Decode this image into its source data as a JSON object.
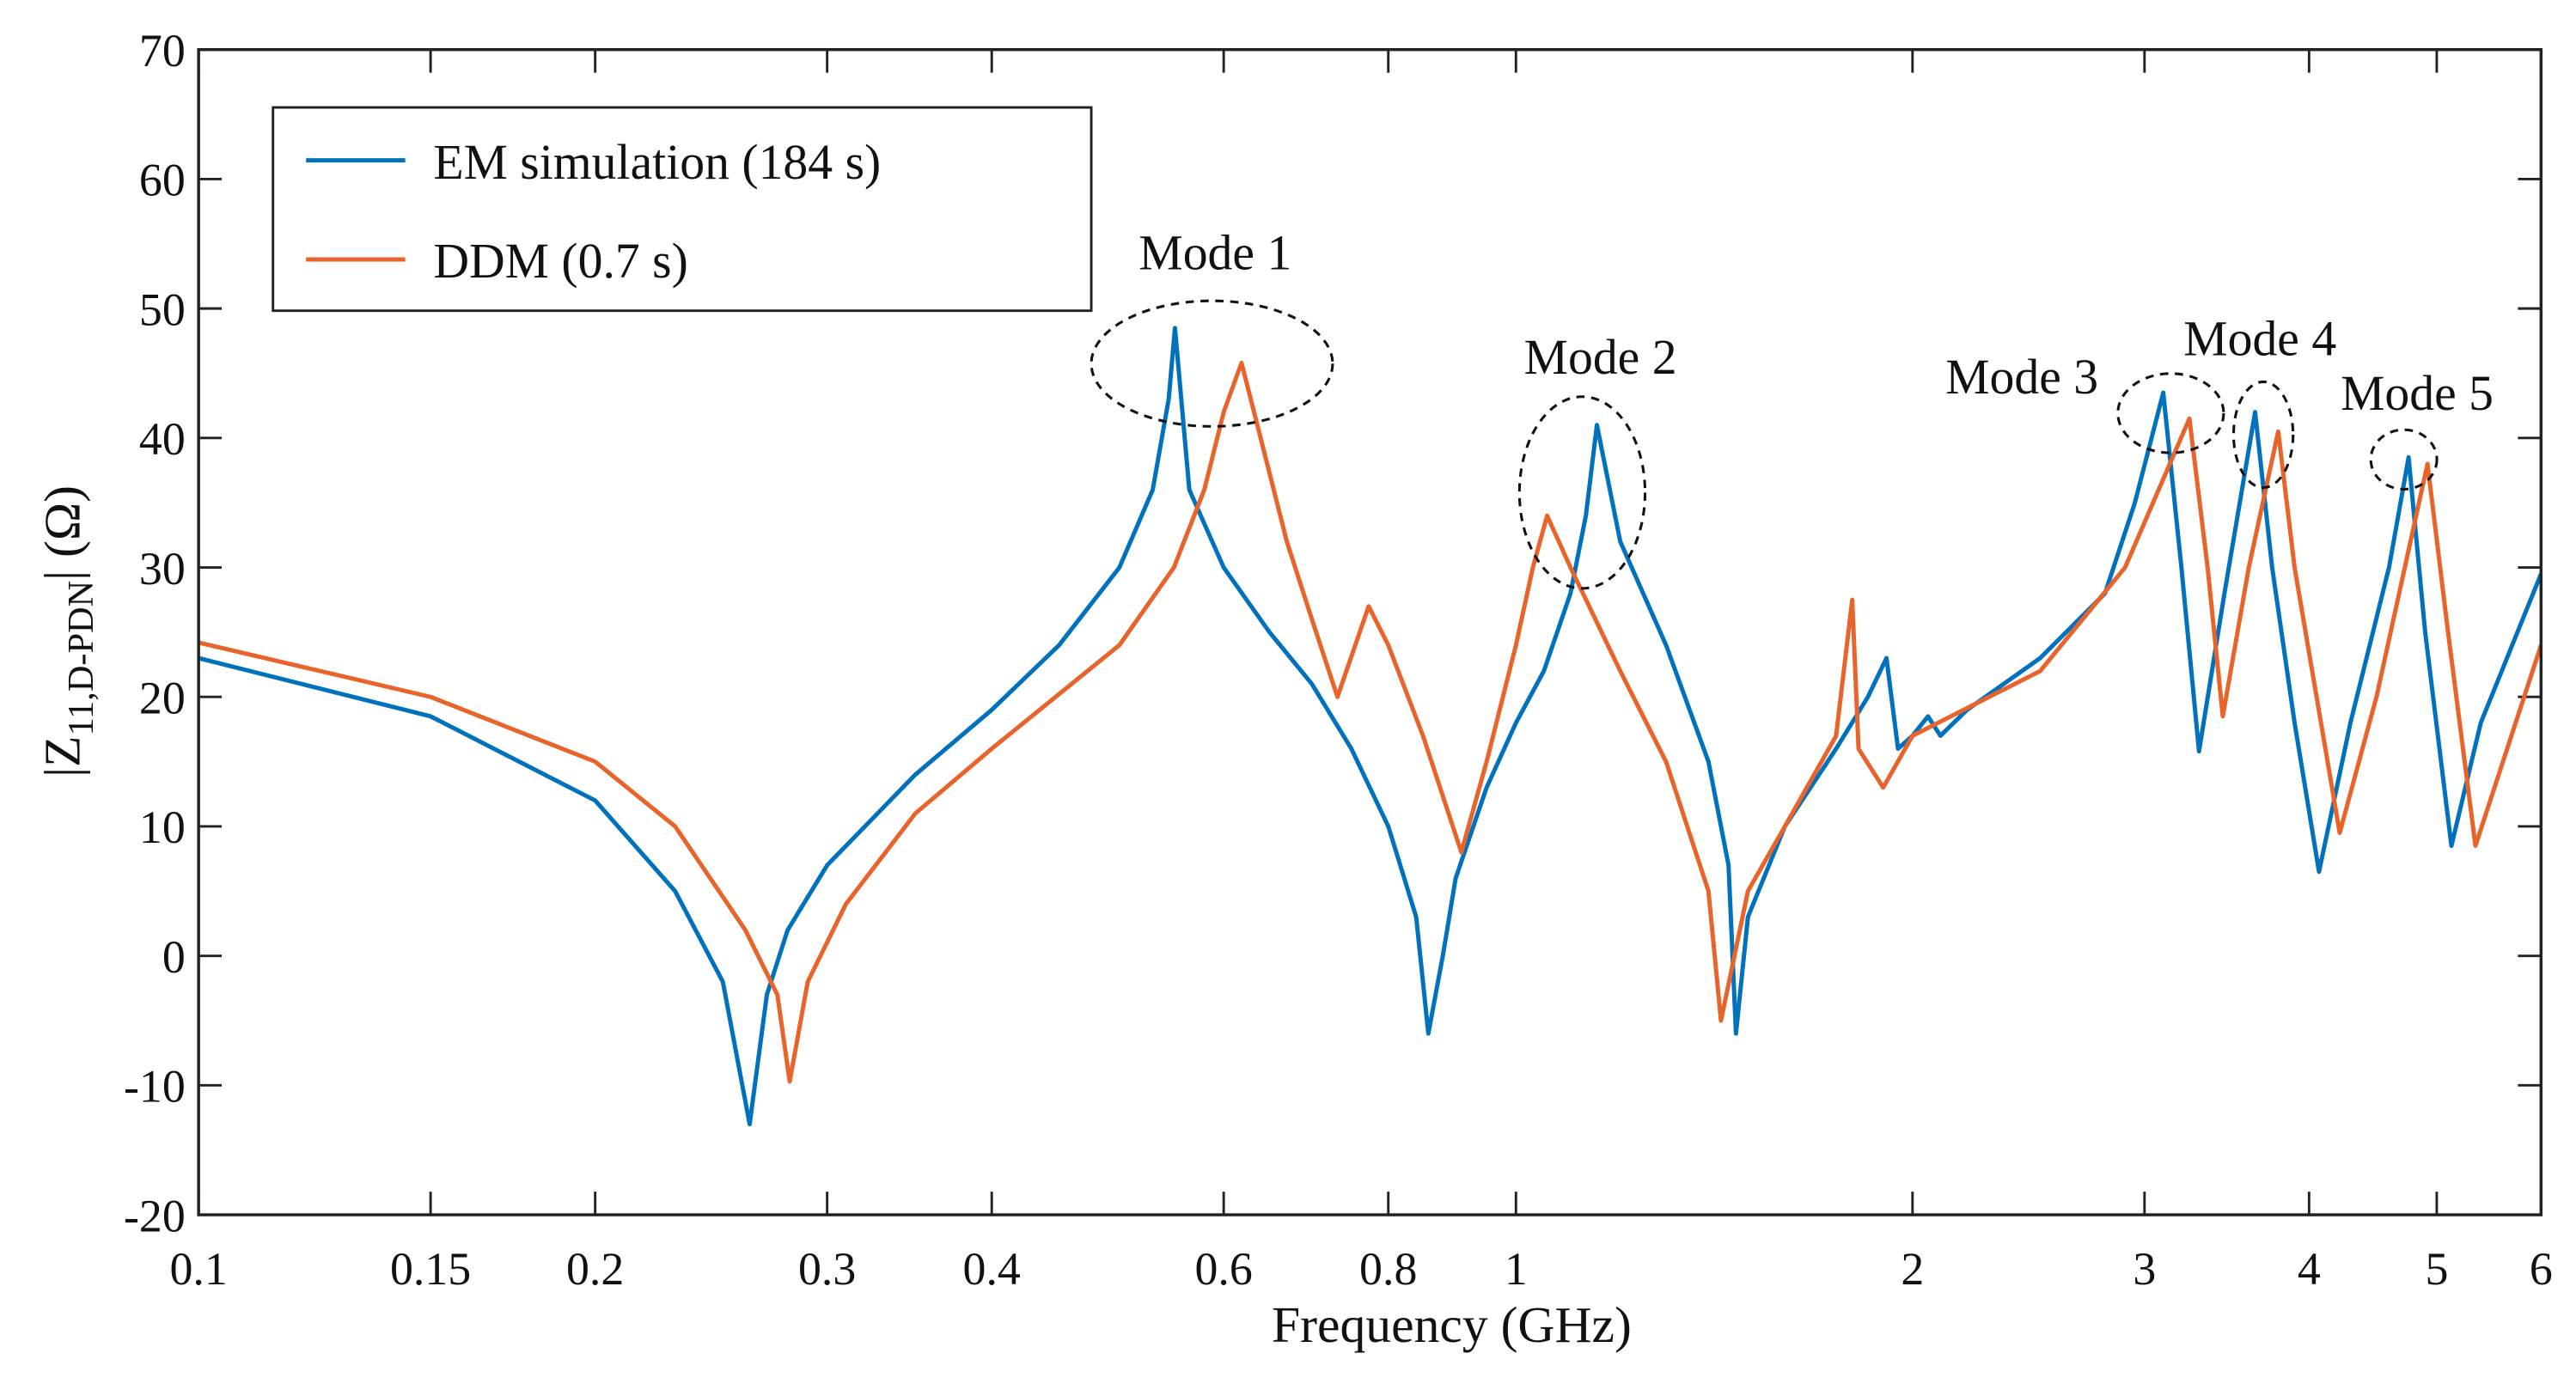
{
  "chart_data": {
    "type": "line",
    "xlabel": "Frequency (GHz)",
    "ylabel": {
      "main": "|Z",
      "sub": "11,D-PDN",
      "tail": "| (Ω)"
    },
    "xscale": "log",
    "xlim": [
      0.1,
      6
    ],
    "ylim": [
      -20,
      70
    ],
    "xticks": [
      0.1,
      0.15,
      0.2,
      0.3,
      0.4,
      0.6,
      0.8,
      1,
      2,
      3,
      4,
      5,
      6
    ],
    "yticks": [
      -20,
      -10,
      0,
      10,
      20,
      30,
      40,
      50,
      60,
      70
    ],
    "legend": "upper left",
    "series": [
      {
        "name": "EM simulation (184 s)",
        "color": "#0072BD",
        "x": [
          0.1,
          0.15,
          0.2,
          0.23,
          0.25,
          0.262,
          0.27,
          0.28,
          0.3,
          0.35,
          0.4,
          0.45,
          0.5,
          0.53,
          0.545,
          0.551,
          0.565,
          0.6,
          0.65,
          0.7,
          0.75,
          0.8,
          0.84,
          0.858,
          0.88,
          0.9,
          0.95,
          1.0,
          1.05,
          1.1,
          1.13,
          1.152,
          1.2,
          1.3,
          1.4,
          1.45,
          1.469,
          1.5,
          1.6,
          1.75,
          1.85,
          1.911,
          1.95,
          2.0,
          2.055,
          2.1,
          2.2,
          2.5,
          2.8,
          2.95,
          3.1,
          3.2,
          3.3,
          3.45,
          3.64,
          3.75,
          3.9,
          4.07,
          4.3,
          4.6,
          4.76,
          4.9,
          5.13,
          5.4,
          6.0
        ],
        "values": [
          23,
          18.5,
          12,
          5,
          -2,
          -13,
          -3,
          2,
          7,
          14,
          19,
          24,
          30,
          36,
          43,
          48.5,
          36,
          30,
          25,
          21,
          16,
          10,
          3,
          -6,
          0,
          6,
          13,
          18,
          22,
          28,
          34,
          41,
          32,
          24,
          15,
          7,
          -6,
          3,
          10,
          16,
          20,
          23,
          16,
          17,
          18.5,
          17,
          19,
          23,
          28,
          35,
          43.5,
          30,
          15.8,
          28,
          42,
          30,
          18,
          6.5,
          18,
          30,
          38.5,
          25,
          8.5,
          18,
          29.5
        ]
      },
      {
        "name": "DDM (0.7 s)",
        "color": "#E8642A",
        "x": [
          0.1,
          0.15,
          0.2,
          0.23,
          0.26,
          0.275,
          0.281,
          0.29,
          0.31,
          0.35,
          0.4,
          0.5,
          0.55,
          0.58,
          0.6,
          0.619,
          0.64,
          0.67,
          0.7,
          0.732,
          0.773,
          0.8,
          0.85,
          0.909,
          0.95,
          1.0,
          1.03,
          1.056,
          1.1,
          1.2,
          1.3,
          1.4,
          1.431,
          1.5,
          1.6,
          1.75,
          1.8,
          1.82,
          1.9,
          2.0,
          2.5,
          2.9,
          3.245,
          3.35,
          3.44,
          3.6,
          3.79,
          3.9,
          4.22,
          4.5,
          4.92,
          5.1,
          5.35,
          6.0
        ],
        "values": [
          24.2,
          20,
          15,
          10,
          2,
          -3,
          -9.7,
          -2,
          4,
          11,
          16,
          24,
          30,
          36,
          42,
          45.8,
          40,
          32,
          26,
          20,
          27,
          24,
          17,
          8,
          15,
          24,
          30,
          34,
          30,
          22,
          15,
          5,
          -5,
          5,
          10,
          17,
          27.5,
          16,
          13,
          17,
          22,
          30,
          41.5,
          30,
          18.5,
          30,
          40.5,
          30,
          9.5,
          20,
          38,
          25,
          8.5,
          24
        ]
      }
    ],
    "annotations": [
      "Mode 1",
      "Mode 2",
      "Mode 3",
      "Mode 4",
      "Mode 5"
    ]
  }
}
